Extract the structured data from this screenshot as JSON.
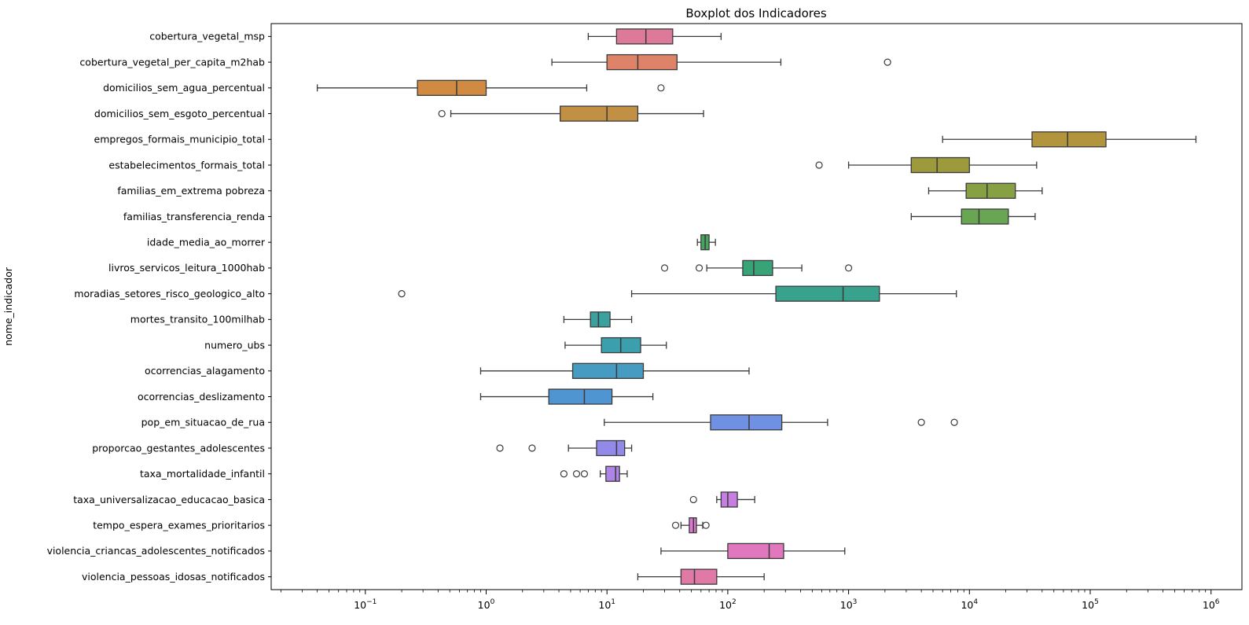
{
  "title": "Boxplot dos Indicadores",
  "chart_data": {
    "type": "boxplot",
    "orientation": "horizontal",
    "title": "Boxplot dos Indicadores",
    "xlabel": "",
    "ylabel": "nome_indicador",
    "x_scale": "log",
    "x_tick_exponents": [
      -1,
      0,
      1,
      2,
      3,
      4,
      5,
      6
    ],
    "x_range_approx": [
      0.017,
      1800000
    ],
    "grid": false,
    "legend_position": "none",
    "rows": [
      {
        "label": "cobertura_vegetal_msp",
        "color": "#de7a99",
        "whislo": 7,
        "q1": 12,
        "med": 21,
        "q3": 35,
        "whishi": 88,
        "outliers": []
      },
      {
        "label": "cobertura_vegetal_per_capita_m2hab",
        "color": "#df8368",
        "whislo": 3.5,
        "q1": 10,
        "med": 18,
        "q3": 38,
        "whishi": 275,
        "outliers": [
          2100
        ]
      },
      {
        "label": "domicilios_sem_agua_percentual",
        "color": "#d18a41",
        "whislo": 0.04,
        "q1": 0.27,
        "med": 0.57,
        "q3": 1.0,
        "whishi": 6.8,
        "outliers": [
          28
        ]
      },
      {
        "label": "domicilios_sem_esgoto_percentual",
        "color": "#c19045",
        "whislo": 0.51,
        "q1": 4.1,
        "med": 10,
        "q3": 18,
        "whishi": 63,
        "outliers": [
          0.43
        ]
      },
      {
        "label": "empregos_formais_municipio_total",
        "color": "#b2943c",
        "whislo": 6000,
        "q1": 33000,
        "med": 65000,
        "q3": 135000,
        "whishi": 750000,
        "outliers": []
      },
      {
        "label": "estabelecimentos_formais_total",
        "color": "#9d9a3c",
        "whislo": 1000,
        "q1": 3300,
        "med": 5400,
        "q3": 10000,
        "whishi": 36000,
        "outliers": [
          570
        ]
      },
      {
        "label": "familias_em_extrema pobreza",
        "color": "#86a043",
        "whislo": 4600,
        "q1": 9400,
        "med": 14000,
        "q3": 24000,
        "whishi": 40000,
        "outliers": []
      },
      {
        "label": "familias_transferencia_renda",
        "color": "#68a653",
        "whislo": 3300,
        "q1": 8600,
        "med": 12000,
        "q3": 21000,
        "whishi": 35000,
        "outliers": []
      },
      {
        "label": "idade_media_ao_morrer",
        "color": "#46a45e",
        "whislo": 56,
        "q1": 60,
        "med": 65,
        "q3": 70,
        "whishi": 79,
        "outliers": []
      },
      {
        "label": "livros_servicos_leitura_1000hab",
        "color": "#38a377",
        "whislo": 67,
        "q1": 133,
        "med": 164,
        "q3": 235,
        "whishi": 410,
        "outliers": [
          30,
          58,
          1000
        ]
      },
      {
        "label": "moradias_setores_risco_geologico_alto",
        "color": "#39a28c",
        "whislo": 16,
        "q1": 250,
        "med": 900,
        "q3": 1800,
        "whishi": 7800,
        "outliers": [
          0.2
        ]
      },
      {
        "label": "mortes_transito_100milhab",
        "color": "#3aa19e",
        "whislo": 4.4,
        "q1": 7.3,
        "med": 8.5,
        "q3": 10.6,
        "whishi": 16,
        "outliers": []
      },
      {
        "label": "numero_ubs",
        "color": "#3c9fad",
        "whislo": 4.5,
        "q1": 9,
        "med": 13,
        "q3": 19,
        "whishi": 31,
        "outliers": []
      },
      {
        "label": "ocorrencias_alagamento",
        "color": "#459bc1",
        "whislo": 0.9,
        "q1": 5.2,
        "med": 12,
        "q3": 20,
        "whishi": 150,
        "outliers": []
      },
      {
        "label": "ocorrencias_deslizamento",
        "color": "#4f95d2",
        "whislo": 0.9,
        "q1": 3.3,
        "med": 6.5,
        "q3": 11,
        "whishi": 24,
        "outliers": []
      },
      {
        "label": "pop_em_situacao_de_rua",
        "color": "#7090e4",
        "whislo": 9.5,
        "q1": 72,
        "med": 150,
        "q3": 280,
        "whishi": 670,
        "outliers": [
          4000,
          7500
        ]
      },
      {
        "label": "proporcao_gestantes_adolescentes",
        "color": "#928ae9",
        "whislo": 4.8,
        "q1": 8.2,
        "med": 12,
        "q3": 14,
        "whishi": 16,
        "outliers": [
          1.3,
          2.4
        ]
      },
      {
        "label": "taxa_mortalidade_infantil",
        "color": "#ae84e7",
        "whislo": 8.8,
        "q1": 9.8,
        "med": 11.8,
        "q3": 12.7,
        "whishi": 14.7,
        "outliers": [
          4.4,
          5.6,
          6.5
        ]
      },
      {
        "label": "taxa_universalizacao_educacao_basica",
        "color": "#c77ee1",
        "whislo": 81,
        "q1": 88,
        "med": 100,
        "q3": 120,
        "whishi": 167,
        "outliers": [
          52
        ]
      },
      {
        "label": "tempo_espera_exames_prioritarios",
        "color": "#da79d2",
        "whislo": 41,
        "q1": 48,
        "med": 52,
        "q3": 55,
        "whishi": 62,
        "outliers": [
          37,
          66
        ]
      },
      {
        "label": "violencia_criancas_adolescentes_notificados",
        "color": "#e177bd",
        "whislo": 28,
        "q1": 100,
        "med": 220,
        "q3": 290,
        "whishi": 930,
        "outliers": []
      },
      {
        "label": "violencia_pessoas_idosas_notificados",
        "color": "#e079a5",
        "whislo": 18,
        "q1": 41,
        "med": 53,
        "q3": 81,
        "whishi": 200,
        "outliers": []
      }
    ]
  }
}
